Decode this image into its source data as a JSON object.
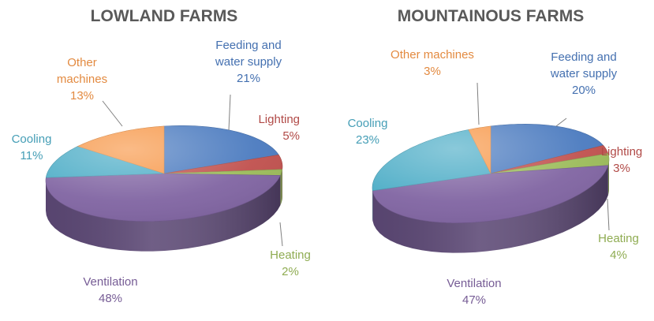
{
  "chart_data": [
    {
      "type": "pie",
      "title": "LOWLAND FARMS",
      "slices": [
        {
          "label": [
            "Feeding and",
            "water supply"
          ],
          "value_label": "21%",
          "value": 21,
          "color": "#4a7abf"
        },
        {
          "label": [
            "Lighting"
          ],
          "value_label": "5%",
          "value": 5,
          "color": "#c0504d"
        },
        {
          "label": [
            "Heating"
          ],
          "value_label": "2%",
          "value": 2,
          "color": "#9bbb59"
        },
        {
          "label": [
            "Ventilation"
          ],
          "value_label": "48%",
          "value": 48,
          "color": "#8064a2"
        },
        {
          "label": [
            "Cooling"
          ],
          "value_label": "11%",
          "value": 11,
          "color": "#4bacc6"
        },
        {
          "label": [
            "Other",
            "machines"
          ],
          "value_label": "13%",
          "value": 13,
          "color": "#f79646"
        }
      ]
    },
    {
      "type": "pie",
      "title": "MOUNTAINOUS FARMS",
      "slices": [
        {
          "label": [
            "Feeding and",
            "water supply"
          ],
          "value_label": "20%",
          "value": 20,
          "color": "#4a7abf"
        },
        {
          "label": [
            "Lighting"
          ],
          "value_label": "3%",
          "value": 3,
          "color": "#c0504d"
        },
        {
          "label": [
            "Heating"
          ],
          "value_label": "4%",
          "value": 4,
          "color": "#9bbb59"
        },
        {
          "label": [
            "Ventilation"
          ],
          "value_label": "47%",
          "value": 47,
          "color": "#8064a2"
        },
        {
          "label": [
            "Cooling"
          ],
          "value_label": "23%",
          "value": 23,
          "color": "#4bacc6"
        },
        {
          "label": [
            "Other machines"
          ],
          "value_label": "3%",
          "value": 3,
          "color": "#f79646"
        }
      ]
    }
  ]
}
